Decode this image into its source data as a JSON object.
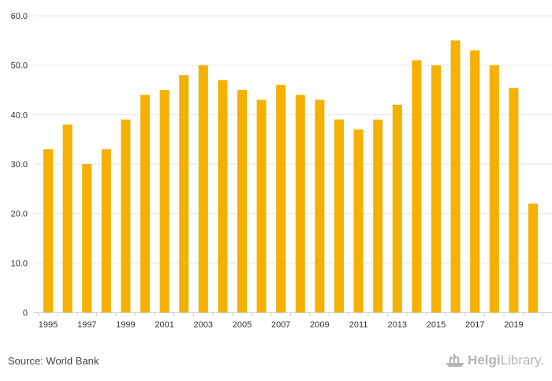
{
  "chart_data": {
    "type": "bar",
    "x": [
      1995,
      1996,
      1997,
      1998,
      1999,
      2000,
      2001,
      2002,
      2003,
      2004,
      2005,
      2006,
      2007,
      2008,
      2009,
      2010,
      2011,
      2012,
      2013,
      2014,
      2015,
      2016,
      2017,
      2018,
      2019,
      2020
    ],
    "values": [
      33,
      38,
      30,
      33,
      39,
      44,
      45,
      48,
      50,
      47,
      45,
      43,
      46,
      44,
      43,
      39,
      37,
      39,
      42,
      51,
      50,
      55,
      53,
      50,
      45.4,
      22
    ],
    "x_tick_labels": [
      "1995",
      "1997",
      "1999",
      "2001",
      "2003",
      "2005",
      "2007",
      "2009",
      "2011",
      "2013",
      "2015",
      "2017",
      "2019"
    ],
    "y_tick_labels": [
      "0",
      "10.0",
      "20.0",
      "30.0",
      "40.0",
      "50.0",
      "60.0"
    ],
    "ylim": [
      0,
      60
    ],
    "grid": true,
    "bar_color": "#f5b000",
    "grid_color": "#e6e6e6"
  },
  "footer": {
    "source": "Source: World Bank",
    "logo_bold": "Helgi",
    "logo_light": "Library."
  },
  "logo_icon": "helgi-library-ship-icon"
}
